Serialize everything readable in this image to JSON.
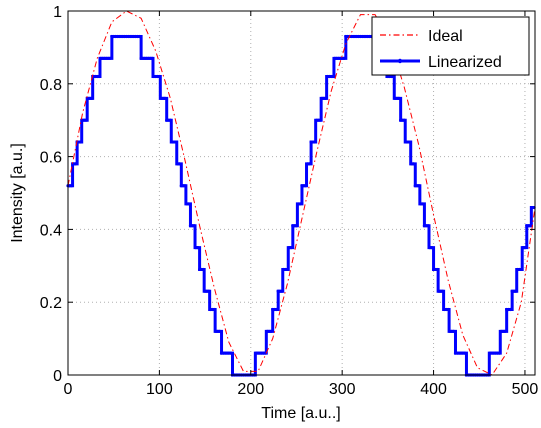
{
  "chart_data": {
    "type": "line",
    "xlabel": "Time [a.u..]",
    "ylabel": "Intensity [a.u.]",
    "xlim": [
      0,
      511
    ],
    "ylim": [
      0,
      1
    ],
    "xticks": [
      0,
      100,
      200,
      300,
      400,
      500
    ],
    "yticks": [
      0,
      0.2,
      0.4,
      0.6,
      0.8,
      1
    ],
    "xtick_labels": [
      "0",
      "100",
      "200",
      "300",
      "400",
      "500"
    ],
    "ytick_labels": [
      "0",
      "0.2",
      "0.4",
      "0.6",
      "0.8",
      "1"
    ],
    "grid": true,
    "legend_position": "top-right",
    "series": [
      {
        "name": "Ideal",
        "style": "dash-dot",
        "color": "#ff0000",
        "x": [
          0,
          16,
          32,
          48,
          64,
          80,
          96,
          112,
          128,
          144,
          160,
          176,
          192,
          208,
          224,
          240,
          256,
          272,
          288,
          304,
          320,
          336,
          352,
          368,
          384,
          400,
          416,
          432,
          448,
          464,
          480,
          496,
          511
        ],
        "y": [
          0.52,
          0.72,
          0.87,
          0.97,
          1.0,
          0.98,
          0.89,
          0.76,
          0.59,
          0.41,
          0.24,
          0.09,
          0.01,
          0.01,
          0.1,
          0.25,
          0.43,
          0.61,
          0.78,
          0.91,
          0.99,
          0.99,
          0.92,
          0.79,
          0.63,
          0.44,
          0.26,
          0.11,
          0.02,
          0.0,
          0.06,
          0.2,
          0.46
        ]
      },
      {
        "name": "Linearized",
        "style": "solid-dots",
        "color": "#0000ff",
        "levels": [
          0,
          0.058,
          0.117,
          0.175,
          0.233,
          0.292,
          0.35,
          0.408,
          0.467,
          0.525,
          0.583,
          0.642,
          0.7,
          0.758,
          0.817,
          0.867,
          0.93
        ],
        "steps": [
          {
            "x": 0,
            "y": 0.52
          },
          {
            "x": 5,
            "y": 0.58
          },
          {
            "x": 10,
            "y": 0.64
          },
          {
            "x": 15,
            "y": 0.7
          },
          {
            "x": 21,
            "y": 0.76
          },
          {
            "x": 27,
            "y": 0.82
          },
          {
            "x": 35,
            "y": 0.87
          },
          {
            "x": 48,
            "y": 0.93
          },
          {
            "x": 80,
            "y": 0.87
          },
          {
            "x": 93,
            "y": 0.82
          },
          {
            "x": 101,
            "y": 0.76
          },
          {
            "x": 108,
            "y": 0.7
          },
          {
            "x": 113,
            "y": 0.64
          },
          {
            "x": 119,
            "y": 0.58
          },
          {
            "x": 124,
            "y": 0.52
          },
          {
            "x": 129,
            "y": 0.47
          },
          {
            "x": 134,
            "y": 0.41
          },
          {
            "x": 139,
            "y": 0.35
          },
          {
            "x": 144,
            "y": 0.29
          },
          {
            "x": 149,
            "y": 0.23
          },
          {
            "x": 155,
            "y": 0.18
          },
          {
            "x": 161,
            "y": 0.12
          },
          {
            "x": 168,
            "y": 0.06
          },
          {
            "x": 180,
            "y": 0.0
          },
          {
            "x": 205,
            "y": 0.06
          },
          {
            "x": 217,
            "y": 0.12
          },
          {
            "x": 224,
            "y": 0.18
          },
          {
            "x": 230,
            "y": 0.23
          },
          {
            "x": 235,
            "y": 0.29
          },
          {
            "x": 241,
            "y": 0.35
          },
          {
            "x": 246,
            "y": 0.41
          },
          {
            "x": 251,
            "y": 0.47
          },
          {
            "x": 256,
            "y": 0.52
          },
          {
            "x": 261,
            "y": 0.58
          },
          {
            "x": 266,
            "y": 0.64
          },
          {
            "x": 271,
            "y": 0.7
          },
          {
            "x": 277,
            "y": 0.76
          },
          {
            "x": 283,
            "y": 0.82
          },
          {
            "x": 291,
            "y": 0.87
          },
          {
            "x": 304,
            "y": 0.93
          },
          {
            "x": 336,
            "y": 0.87
          },
          {
            "x": 349,
            "y": 0.82
          },
          {
            "x": 357,
            "y": 0.76
          },
          {
            "x": 364,
            "y": 0.7
          },
          {
            "x": 369,
            "y": 0.64
          },
          {
            "x": 375,
            "y": 0.58
          },
          {
            "x": 380,
            "y": 0.52
          },
          {
            "x": 385,
            "y": 0.47
          },
          {
            "x": 390,
            "y": 0.41
          },
          {
            "x": 395,
            "y": 0.35
          },
          {
            "x": 400,
            "y": 0.29
          },
          {
            "x": 405,
            "y": 0.23
          },
          {
            "x": 411,
            "y": 0.18
          },
          {
            "x": 417,
            "y": 0.12
          },
          {
            "x": 424,
            "y": 0.06
          },
          {
            "x": 436,
            "y": 0.0
          },
          {
            "x": 461,
            "y": 0.06
          },
          {
            "x": 473,
            "y": 0.12
          },
          {
            "x": 480,
            "y": 0.18
          },
          {
            "x": 486,
            "y": 0.23
          },
          {
            "x": 491,
            "y": 0.29
          },
          {
            "x": 497,
            "y": 0.35
          },
          {
            "x": 502,
            "y": 0.41
          },
          {
            "x": 507,
            "y": 0.46
          },
          {
            "x": 511,
            "y": 0.46
          }
        ]
      }
    ]
  }
}
